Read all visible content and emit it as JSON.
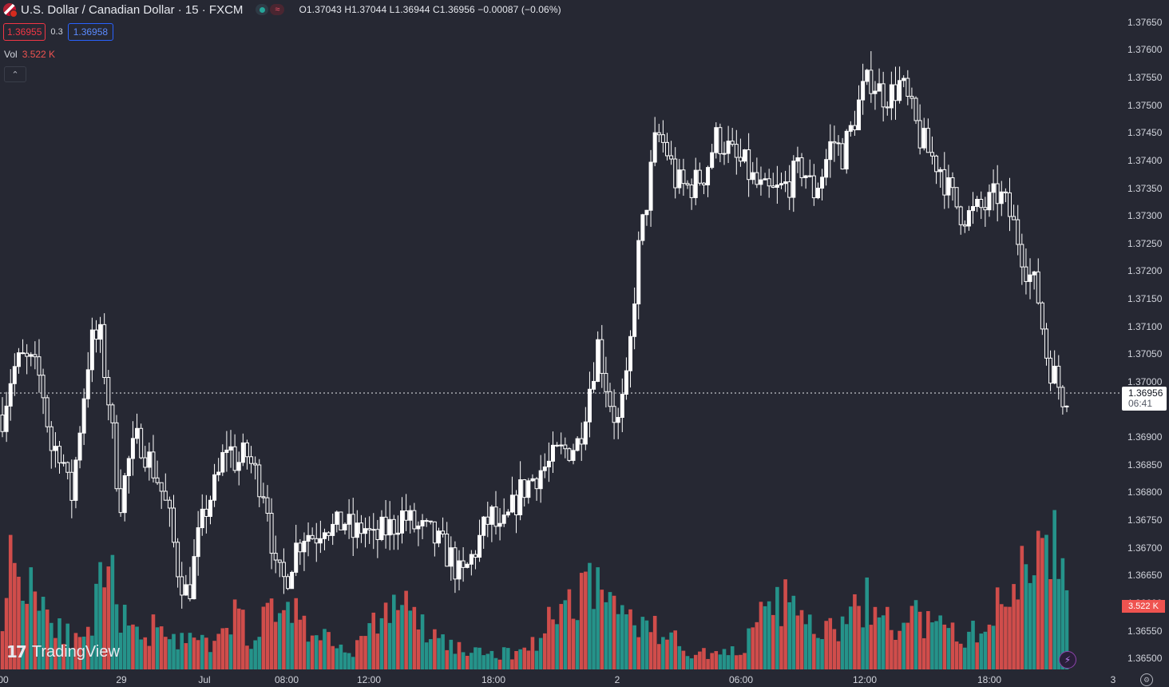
{
  "header": {
    "symbol_title": "U.S. Dollar / Canadian Dollar · 15 · FXCM",
    "flag_icon": "us-ca-flag-icon",
    "ohlc": {
      "open": "O1.37043",
      "high": "H1.37044",
      "low": "L1.36944",
      "close": "C1.36956",
      "change": "−0.00087 (−0.06%)"
    }
  },
  "quotes": {
    "sell": "1.36955",
    "spread": "0.3",
    "buy": "1.36958"
  },
  "volume_legend": {
    "label": "Vol",
    "value": "3.522 K"
  },
  "last_price": {
    "price": "1.36956",
    "countdown": "06:41"
  },
  "volume_tag": "3.522 K",
  "branding": {
    "text": "TradingView"
  },
  "colors": {
    "background": "#262833",
    "up_volume": "#26a69a",
    "down_volume": "#ef5350",
    "candle": "#ffffff",
    "sell": "#f23645",
    "buy": "#2962ff"
  },
  "chart_data": {
    "type": "candlestick",
    "price_axis_ticks": [
      "1.37650",
      "1.37600",
      "1.37550",
      "1.37500",
      "1.37450",
      "1.37400",
      "1.37350",
      "1.37300",
      "1.37250",
      "1.37200",
      "1.37150",
      "1.37100",
      "1.37050",
      "1.37000",
      "1.36900",
      "1.36850",
      "1.36800",
      "1.36750",
      "1.36700",
      "1.36650",
      "1.36600",
      "1.36550",
      "1.36500"
    ],
    "time_axis_ticks": [
      "00",
      "29",
      "Jul",
      "08:00",
      "12:00",
      "18:00",
      "2",
      "06:00",
      "12:00",
      "18:00",
      "3"
    ],
    "y_range": [
      1.3648,
      1.3767
    ],
    "path": [
      1.3694,
      1.3702,
      1.3704,
      1.3703,
      1.37,
      1.3688,
      1.3688,
      1.3678,
      1.3693,
      1.3707,
      1.3708,
      1.3695,
      1.3678,
      1.3686,
      1.369,
      1.3686,
      1.3682,
      1.3676,
      1.3666,
      1.3661,
      1.3671,
      1.3678,
      1.3682,
      1.3689,
      1.3685,
      1.3687,
      1.3683,
      1.368,
      1.3665,
      1.3664,
      1.367,
      1.3673,
      1.3672,
      1.3675,
      1.3673,
      1.3675,
      1.3672,
      1.3674,
      1.3671,
      1.3673,
      1.3674,
      1.3676,
      1.3674,
      1.3673,
      1.3672,
      1.367,
      1.3668,
      1.3664,
      1.3668,
      1.3672,
      1.3676,
      1.3672,
      1.3676,
      1.368,
      1.3682,
      1.3684,
      1.3685,
      1.3687,
      1.3688,
      1.3689,
      1.3698,
      1.3707,
      1.3698,
      1.3692,
      1.37,
      1.3722,
      1.3733,
      1.3745,
      1.3742,
      1.3736,
      1.3735,
      1.3736,
      1.3738,
      1.3744,
      1.3743,
      1.374,
      1.3739,
      1.3736,
      1.3734,
      1.3734,
      1.3735,
      1.3737,
      1.3739,
      1.3734,
      1.3738,
      1.3744,
      1.3741,
      1.3746,
      1.3752,
      1.3755,
      1.3752,
      1.3752,
      1.3754,
      1.3749,
      1.3744,
      1.3741,
      1.3739,
      1.3734,
      1.3731,
      1.373,
      1.3731,
      1.3732,
      1.3734,
      1.3731,
      1.3726,
      1.372,
      1.3716,
      1.3704,
      1.37,
      1.3696
    ],
    "volume_path": [
      80,
      140,
      110,
      120,
      90,
      70,
      60,
      40,
      30,
      40,
      90,
      120,
      90,
      50,
      40,
      40,
      60,
      60,
      40,
      30,
      40,
      30,
      30,
      40,
      70,
      60,
      40,
      50,
      80,
      70,
      90,
      60,
      50,
      40,
      40,
      30,
      20,
      30,
      40,
      60,
      70,
      90,
      80,
      60,
      50,
      40,
      35,
      30,
      25,
      20,
      20,
      20,
      20,
      20,
      25,
      30,
      40,
      60,
      70,
      90,
      90,
      130,
      100,
      90,
      80,
      70,
      60,
      60,
      50,
      40,
      40,
      30,
      20,
      20,
      20,
      20,
      20,
      30,
      40,
      60,
      70,
      80,
      90,
      60,
      60,
      50,
      45,
      50,
      60,
      70,
      90,
      70,
      60,
      50,
      60,
      70,
      60,
      50,
      50,
      45,
      40,
      45,
      50,
      60,
      80,
      90,
      120,
      140,
      170,
      200,
      120,
      100
    ],
    "volume_max_label": "3.522 K",
    "last_price": 1.36956
  }
}
